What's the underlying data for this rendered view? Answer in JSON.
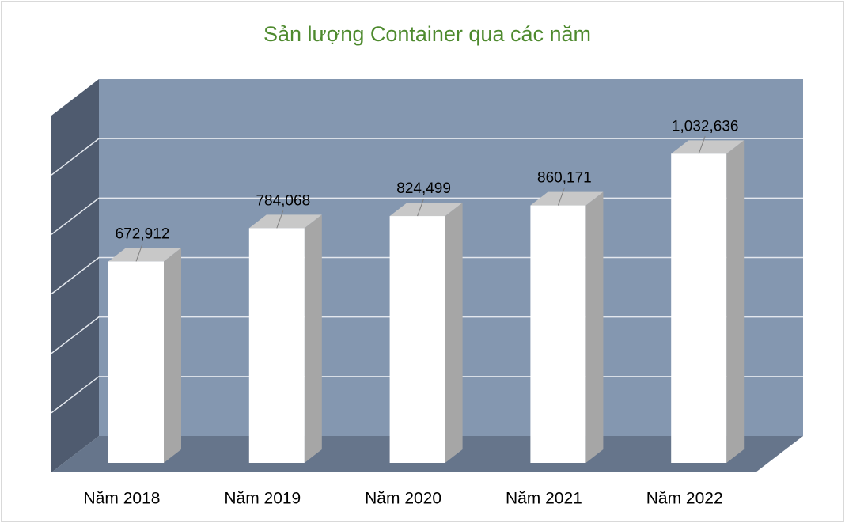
{
  "chart_data": {
    "type": "bar3d",
    "title": "Sản lượng Container qua các năm",
    "categories": [
      "Năm 2018",
      "Năm 2019",
      "Năm 2020",
      "Năm 2021",
      "Năm 2022"
    ],
    "values": [
      672912,
      784068,
      824499,
      860171,
      1032636
    ],
    "value_labels": [
      "672,912",
      "784,068",
      "824,499",
      "860,171",
      "1,032,636"
    ],
    "color": "#ffffff",
    "ylim": [
      0,
      1200000
    ],
    "yticks": [
      0,
      200000,
      400000,
      600000,
      800000,
      1000000,
      1200000
    ],
    "grid": true
  }
}
